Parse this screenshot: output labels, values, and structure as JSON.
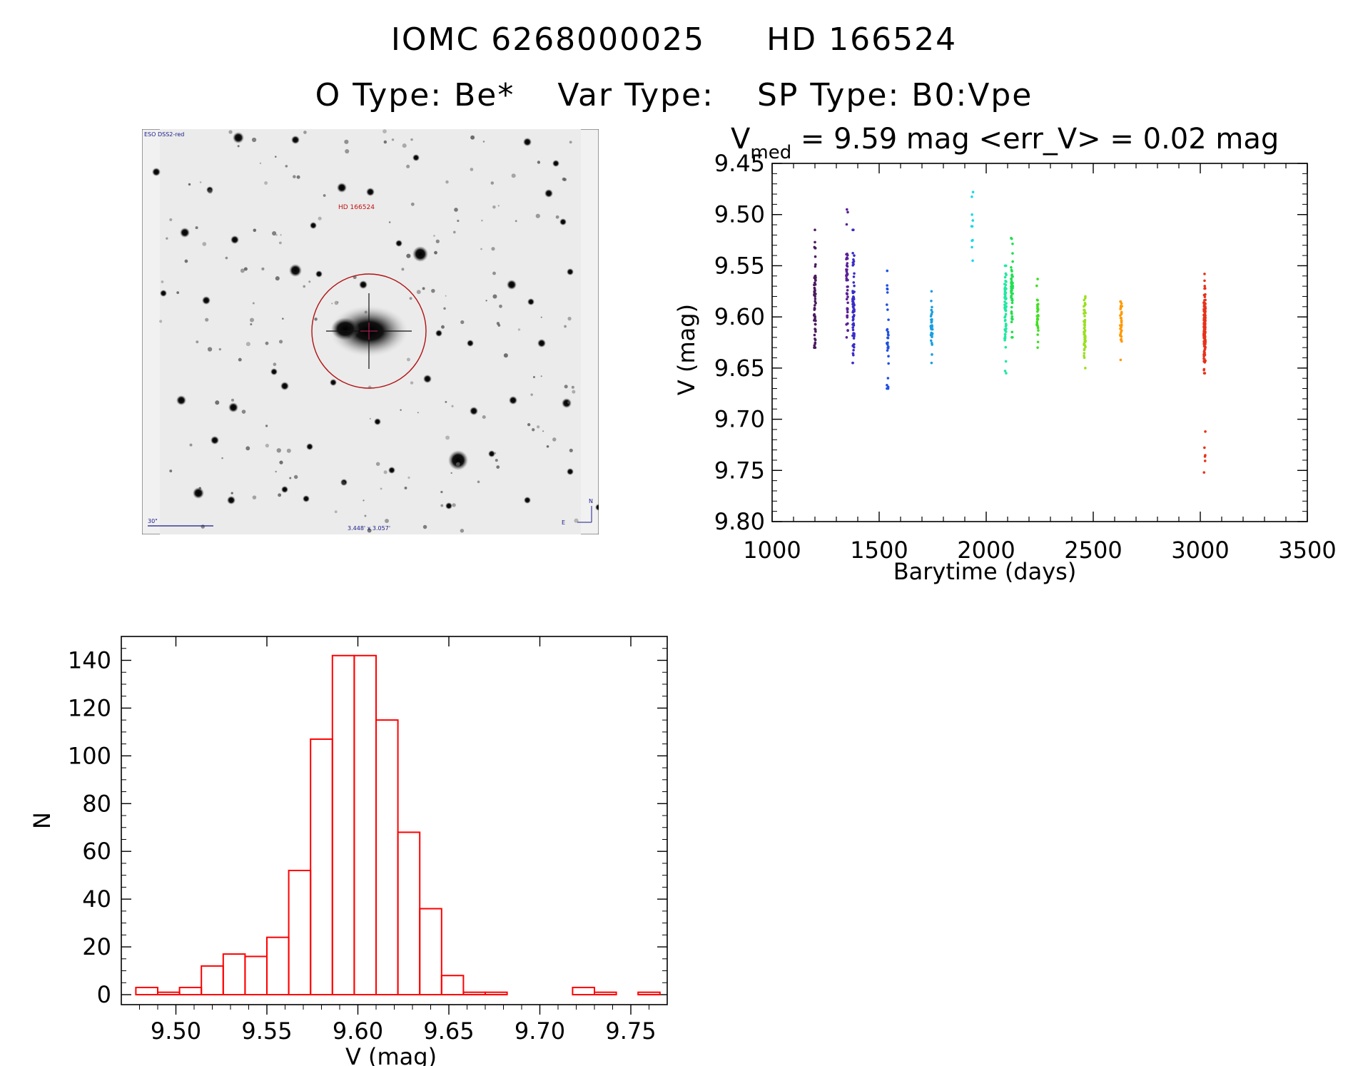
{
  "header": {
    "line1": [
      "IOMC 6268000025",
      "HD 166524"
    ],
    "line2": [
      "O Type: Be*",
      "Var Type:",
      "SP Type: B0:Vpe"
    ]
  },
  "finder": {
    "survey": "ESO DSS2-red",
    "target": "HD 166524",
    "scale_label": "30\"",
    "fov": "3.448' x 3.057'",
    "north": "N",
    "east": "E"
  },
  "lightcurve": {
    "vmed_prefix": "V",
    "vmed_sub": "med",
    "vmed_rest": " = 9.59 mag <err_V> = 0.02 mag",
    "xlabel": "Barytime (days)",
    "ylabel": "V (mag)"
  },
  "chart_data": [
    {
      "type": "scatter",
      "title": "Vmed = 9.59 mag <err_V> = 0.02 mag",
      "xlabel": "Barytime (days)",
      "ylabel": "V (mag)",
      "xlim": [
        1000,
        3500
      ],
      "ylim": [
        9.8,
        9.45
      ],
      "y_inverted": true,
      "xticks": [
        1000,
        1500,
        2000,
        2500,
        3000,
        3500
      ],
      "yticks": [
        9.45,
        9.5,
        9.55,
        9.6,
        9.65,
        9.7,
        9.75,
        9.8
      ],
      "ytick_labels": [
        "9.45",
        "9.50",
        "9.55",
        "9.60",
        "9.65",
        "9.70",
        "9.75",
        "9.80"
      ],
      "color_by": "time (rainbow)",
      "clusters": [
        {
          "x": 1200,
          "y_min": 9.515,
          "y_max": 9.63,
          "y_center": 9.58,
          "n": 60,
          "color": "#4a1a5e"
        },
        {
          "x": 1350,
          "y_min": 9.495,
          "y_max": 9.62,
          "y_center": 9.57,
          "n": 45,
          "color": "#5a1f96"
        },
        {
          "x": 1380,
          "y_min": 9.515,
          "y_max": 9.645,
          "y_center": 9.595,
          "n": 70,
          "color": "#3a2cc8"
        },
        {
          "x": 1540,
          "y_min": 9.555,
          "y_max": 9.67,
          "y_center": 9.615,
          "n": 30,
          "color": "#2050e0"
        },
        {
          "x": 1745,
          "y_min": 9.575,
          "y_max": 9.645,
          "y_center": 9.61,
          "n": 35,
          "color": "#1a9fe0"
        },
        {
          "x": 1935,
          "y_min": 9.478,
          "y_max": 9.545,
          "y_center": 9.51,
          "n": 10,
          "color": "#18d8e8"
        },
        {
          "x": 2090,
          "y_min": 9.55,
          "y_max": 9.655,
          "y_center": 9.59,
          "n": 60,
          "color": "#20e8a0"
        },
        {
          "x": 2120,
          "y_min": 9.523,
          "y_max": 9.62,
          "y_center": 9.575,
          "n": 50,
          "color": "#20e050"
        },
        {
          "x": 2240,
          "y_min": 9.563,
          "y_max": 9.63,
          "y_center": 9.6,
          "n": 30,
          "color": "#40e020"
        },
        {
          "x": 2460,
          "y_min": 9.58,
          "y_max": 9.65,
          "y_center": 9.613,
          "n": 55,
          "color": "#9ae020"
        },
        {
          "x": 2630,
          "y_min": 9.585,
          "y_max": 9.642,
          "y_center": 9.605,
          "n": 35,
          "color": "#ff9900"
        },
        {
          "x": 3020,
          "y_min": 9.558,
          "y_max": 9.655,
          "y_center": 9.605,
          "n": 130,
          "color": "#e8301a"
        },
        {
          "x": 3020,
          "y_min": 9.712,
          "y_max": 9.752,
          "y_center": 9.73,
          "n": 6,
          "color": "#e8301a"
        }
      ]
    },
    {
      "type": "bar",
      "subtype": "histogram",
      "xlabel": "V (mag)",
      "ylabel": "N",
      "xlim": [
        9.47,
        9.77
      ],
      "ylim": [
        0,
        150
      ],
      "xticks": [
        9.5,
        9.55,
        9.6,
        9.65,
        9.7,
        9.75
      ],
      "xtick_labels": [
        "9.50",
        "9.55",
        "9.60",
        "9.65",
        "9.70",
        "9.75"
      ],
      "yticks": [
        0,
        20,
        40,
        60,
        80,
        100,
        120,
        140
      ],
      "bin_width": 0.012,
      "bin_edges_start": 9.478,
      "values": [
        3,
        1,
        3,
        12,
        17,
        16,
        24,
        52,
        107,
        142,
        142,
        115,
        68,
        36,
        8,
        1,
        1,
        0,
        0,
        0,
        3,
        1,
        0,
        1
      ],
      "color": "#ff0000"
    }
  ]
}
